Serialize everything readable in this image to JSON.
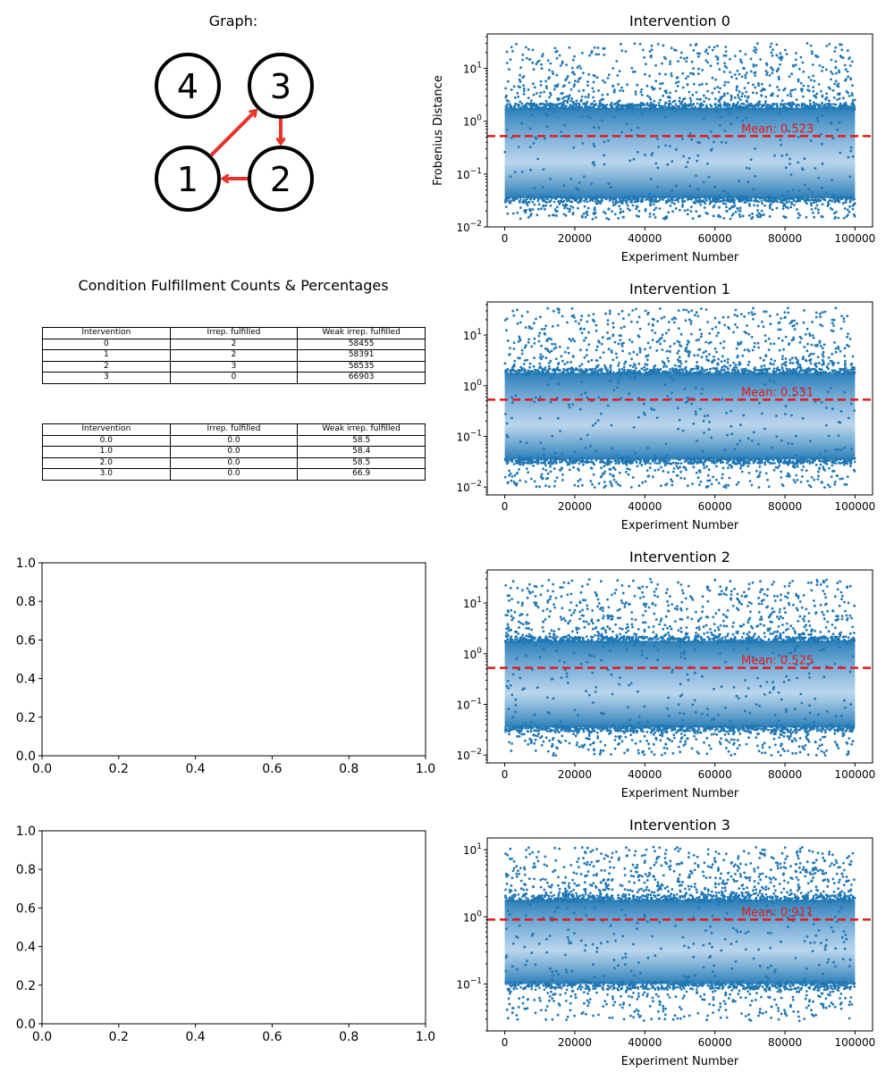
{
  "graph_panel": {
    "title": "Graph:",
    "nodes": [
      {
        "id": "4",
        "label": "4"
      },
      {
        "id": "3",
        "label": "3"
      },
      {
        "id": "1",
        "label": "1"
      },
      {
        "id": "2",
        "label": "2"
      }
    ],
    "edges": [
      {
        "from": "1",
        "to": "3"
      },
      {
        "from": "3",
        "to": "2"
      },
      {
        "from": "2",
        "to": "1"
      }
    ],
    "edge_color": "#e8322a"
  },
  "table_panel": {
    "title": "Condition Fulfillment Counts & Percentages",
    "headers": [
      "Intervention",
      "Irrep. fulfilled",
      "Weak irrep. fulfilled"
    ],
    "counts_rows": [
      [
        "0",
        "2",
        "58455"
      ],
      [
        "1",
        "2",
        "58391"
      ],
      [
        "2",
        "3",
        "58535"
      ],
      [
        "3",
        "0",
        "66903"
      ]
    ],
    "percent_rows": [
      [
        "0.0",
        "0.0",
        "58.5"
      ],
      [
        "1.0",
        "0.0",
        "58.4"
      ],
      [
        "2.0",
        "0.0",
        "58.5"
      ],
      [
        "3.0",
        "0.0",
        "66.9"
      ]
    ]
  },
  "chart_data": [
    {
      "type": "scatter",
      "title": "Intervention 0",
      "xlabel": "Experiment Number",
      "ylabel": "Frobenius Distance",
      "xlim": [
        -5000,
        105000
      ],
      "ylim": [
        0.01,
        45
      ],
      "yscale": "log",
      "x_ticks": [
        "0",
        "20000",
        "40000",
        "60000",
        "80000",
        "100000"
      ],
      "y_ticks": [
        "10^-2",
        "10^-1",
        "10^0",
        "10^1"
      ],
      "n_points": 100000,
      "distribution": {
        "dense_low": 0.035,
        "dense_high": 1.8,
        "outlier_max": 30
      },
      "mean": 0.523,
      "mean_label": "Mean: 0.523",
      "mean_line_color": "#e31a1c",
      "point_color": "#1f77b4"
    },
    {
      "type": "scatter",
      "title": "Intervention 1",
      "xlabel": "Experiment Number",
      "ylabel": "",
      "xlim": [
        -5000,
        105000
      ],
      "ylim": [
        0.007,
        45
      ],
      "yscale": "log",
      "x_ticks": [
        "0",
        "20000",
        "40000",
        "60000",
        "80000",
        "100000"
      ],
      "y_ticks": [
        "10^-2",
        "10^-1",
        "10^0",
        "10^1"
      ],
      "n_points": 100000,
      "distribution": {
        "dense_low": 0.035,
        "dense_high": 1.8,
        "outlier_max": 35
      },
      "mean": 0.531,
      "mean_label": "Mean: 0.531",
      "mean_line_color": "#e31a1c",
      "point_color": "#1f77b4"
    },
    {
      "type": "scatter",
      "title": "Intervention 2",
      "xlabel": "Experiment Number",
      "ylabel": "",
      "xlim": [
        -5000,
        105000
      ],
      "ylim": [
        0.007,
        45
      ],
      "yscale": "log",
      "x_ticks": [
        "0",
        "20000",
        "40000",
        "60000",
        "80000",
        "100000"
      ],
      "y_ticks": [
        "10^-2",
        "10^-1",
        "10^0",
        "10^1"
      ],
      "n_points": 100000,
      "distribution": {
        "dense_low": 0.035,
        "dense_high": 1.8,
        "outlier_max": 30
      },
      "mean": 0.525,
      "mean_label": "Mean: 0.525",
      "mean_line_color": "#e31a1c",
      "point_color": "#1f77b4"
    },
    {
      "type": "scatter",
      "title": "Intervention 3",
      "xlabel": "Experiment Number",
      "ylabel": "",
      "xlim": [
        -5000,
        105000
      ],
      "ylim": [
        0.02,
        15
      ],
      "yscale": "log",
      "x_ticks": [
        "0",
        "20000",
        "40000",
        "60000",
        "80000",
        "100000"
      ],
      "y_ticks": [
        "10^-1",
        "10^0",
        "10^1"
      ],
      "n_points": 100000,
      "distribution": {
        "dense_low": 0.1,
        "dense_high": 1.8,
        "outlier_max": 11
      },
      "mean": 0.911,
      "mean_label": "Mean: 0.911",
      "mean_line_color": "#e31a1c",
      "point_color": "#1f77b4"
    },
    {
      "type": "empty",
      "xlim": [
        0,
        1
      ],
      "ylim": [
        0,
        1
      ],
      "x_ticks": [
        "0.0",
        "0.2",
        "0.4",
        "0.6",
        "0.8",
        "1.0"
      ],
      "y_ticks": [
        "0.0",
        "0.2",
        "0.4",
        "0.6",
        "0.8",
        "1.0"
      ]
    },
    {
      "type": "empty",
      "xlim": [
        0,
        1
      ],
      "ylim": [
        0,
        1
      ],
      "x_ticks": [
        "0.0",
        "0.2",
        "0.4",
        "0.6",
        "0.8",
        "1.0"
      ],
      "y_ticks": [
        "0.0",
        "0.2",
        "0.4",
        "0.6",
        "0.8",
        "1.0"
      ]
    }
  ]
}
